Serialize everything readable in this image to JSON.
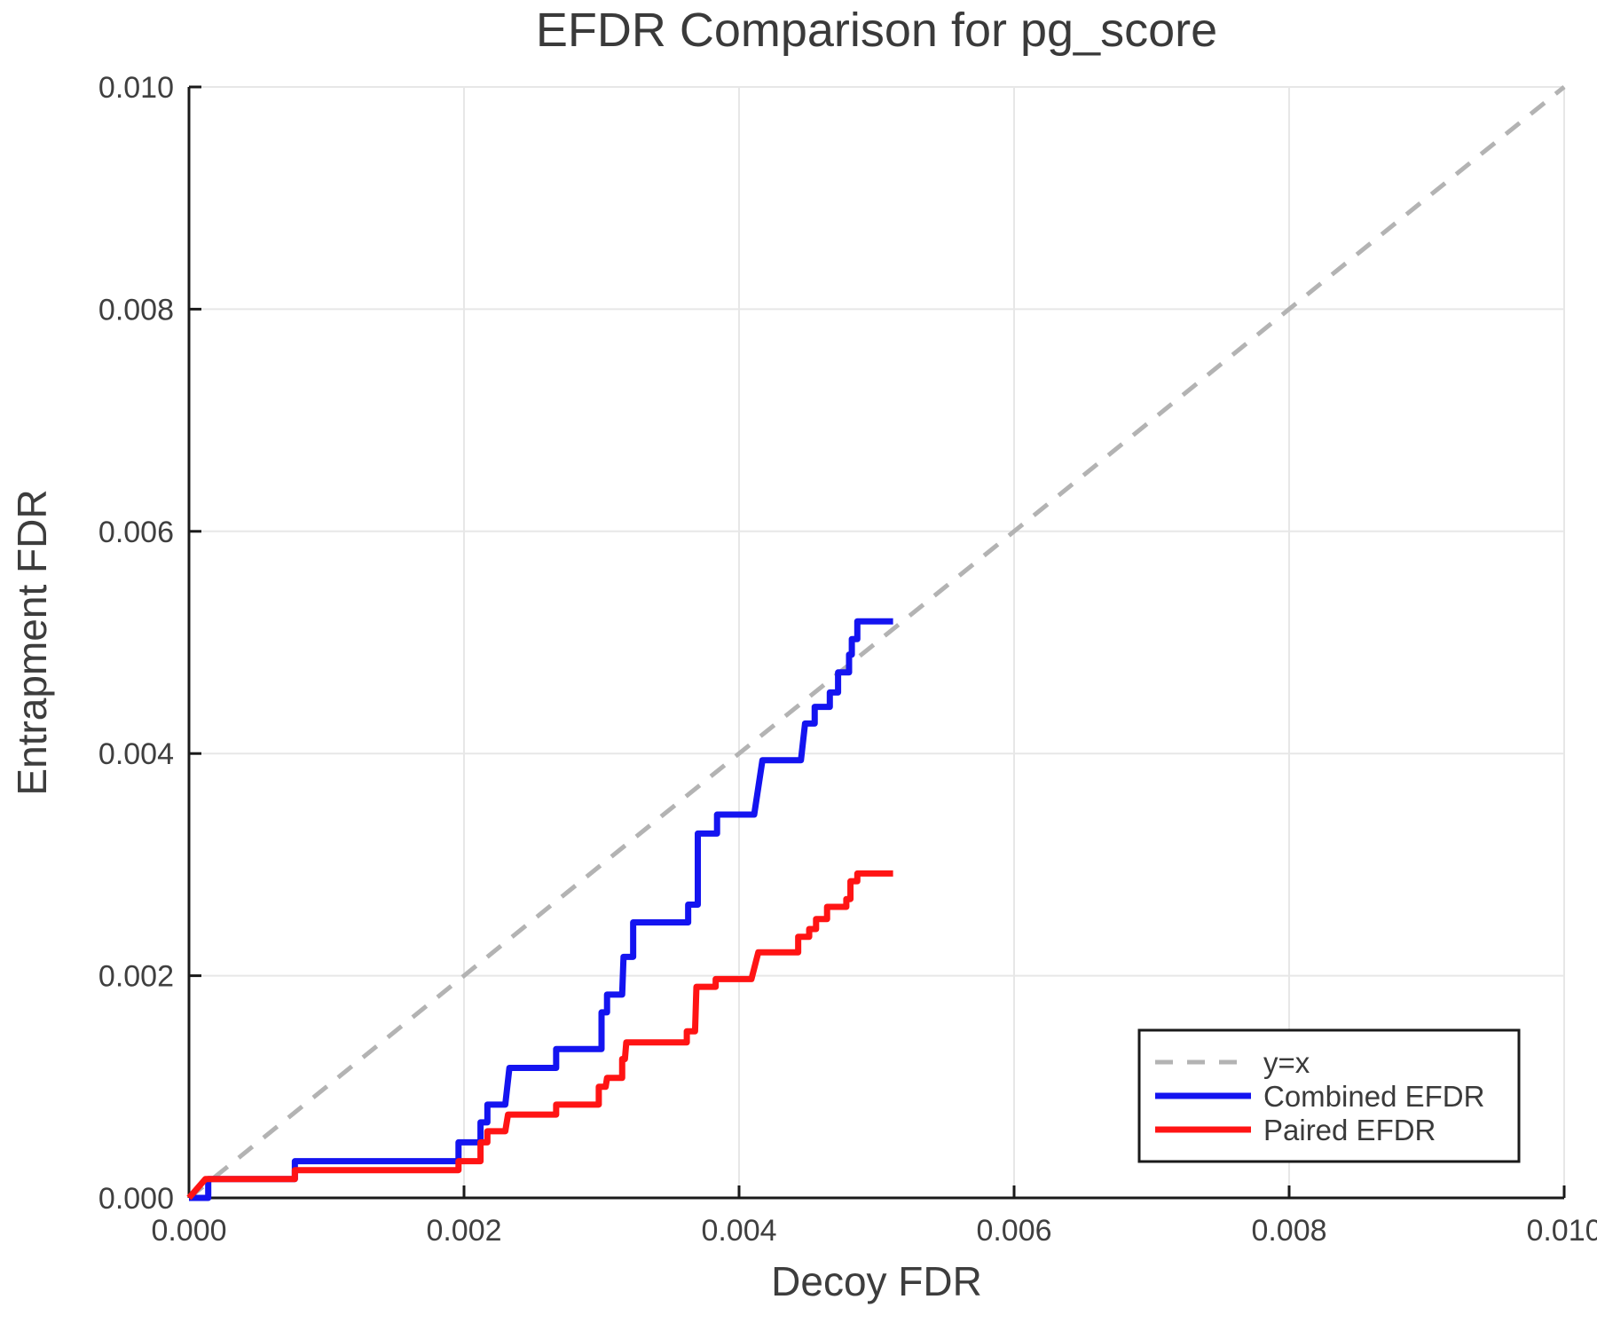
{
  "title": "EFDR Comparison for pg_score",
  "axes": {
    "xlabel": "Decoy FDR",
    "ylabel": "Entrapment FDR",
    "xtick_labels": [
      "0.000",
      "0.002",
      "0.004",
      "0.006",
      "0.008",
      "0.010"
    ],
    "ytick_labels": [
      "0.000",
      "0.002",
      "0.004",
      "0.006",
      "0.008",
      "0.010"
    ]
  },
  "legend": {
    "position": "lower right",
    "entries": [
      {
        "label": "y=x"
      },
      {
        "label": "Combined EFDR"
      },
      {
        "label": "Paired EFDR"
      }
    ]
  },
  "colors": {
    "background": "#ffffff",
    "grid": "#e7e7e7",
    "spine": "#1a1a1a",
    "text": "#3d3d3d",
    "identity_line": "#b3b3b3",
    "combined": "#1414f0",
    "paired": "#ff1414"
  },
  "chart_data": {
    "type": "line",
    "title": "EFDR Comparison for pg_score",
    "xlabel": "Decoy FDR",
    "ylabel": "Entrapment FDR",
    "xlim": [
      0.0,
      0.01
    ],
    "ylim": [
      0.0,
      0.01
    ],
    "grid": true,
    "legend_position": "lower right",
    "series": [
      {
        "name": "y=x",
        "style": "dashed",
        "color": "#b3b3b3",
        "points": [
          [
            0.0,
            0.0
          ],
          [
            0.01,
            0.01
          ]
        ]
      },
      {
        "name": "Combined EFDR",
        "style": "solid",
        "color": "#1414f0",
        "points": [
          [
            0.0,
            0.0
          ],
          [
            0.00014,
            0.0
          ],
          [
            0.00014,
            0.00017
          ],
          [
            0.00077,
            0.00017
          ],
          [
            0.00077,
            0.00033
          ],
          [
            0.00196,
            0.00033
          ],
          [
            0.00196,
            0.0005
          ],
          [
            0.00212,
            0.0005
          ],
          [
            0.00212,
            0.00068
          ],
          [
            0.00217,
            0.00068
          ],
          [
            0.00217,
            0.00084
          ],
          [
            0.0023,
            0.00084
          ],
          [
            0.00233,
            0.00117
          ],
          [
            0.00267,
            0.00117
          ],
          [
            0.00267,
            0.00134
          ],
          [
            0.003,
            0.00134
          ],
          [
            0.003,
            0.00167
          ],
          [
            0.00304,
            0.00167
          ],
          [
            0.00304,
            0.00183
          ],
          [
            0.00315,
            0.00183
          ],
          [
            0.00316,
            0.00217
          ],
          [
            0.00323,
            0.00217
          ],
          [
            0.00323,
            0.00248
          ],
          [
            0.00363,
            0.00248
          ],
          [
            0.00363,
            0.00264
          ],
          [
            0.0037,
            0.00264
          ],
          [
            0.0037,
            0.00328
          ],
          [
            0.00384,
            0.00328
          ],
          [
            0.00384,
            0.00345
          ],
          [
            0.00411,
            0.00345
          ],
          [
            0.00417,
            0.00394
          ],
          [
            0.00445,
            0.00394
          ],
          [
            0.00448,
            0.00427
          ],
          [
            0.00455,
            0.00427
          ],
          [
            0.00455,
            0.00442
          ],
          [
            0.00466,
            0.00442
          ],
          [
            0.00466,
            0.00455
          ],
          [
            0.00472,
            0.00455
          ],
          [
            0.00472,
            0.00473
          ],
          [
            0.0048,
            0.00473
          ],
          [
            0.0048,
            0.00489
          ],
          [
            0.00482,
            0.00489
          ],
          [
            0.00482,
            0.00503
          ],
          [
            0.00486,
            0.00503
          ],
          [
            0.00486,
            0.00519
          ],
          [
            0.00512,
            0.00519
          ]
        ]
      },
      {
        "name": "Paired EFDR",
        "style": "solid",
        "color": "#ff1414",
        "points": [
          [
            0.0,
            0.0
          ],
          [
            0.00012,
            0.00017
          ],
          [
            0.00077,
            0.00017
          ],
          [
            0.00077,
            0.00025
          ],
          [
            0.00196,
            0.00025
          ],
          [
            0.00196,
            0.00033
          ],
          [
            0.00212,
            0.00033
          ],
          [
            0.00212,
            0.0005
          ],
          [
            0.00217,
            0.0005
          ],
          [
            0.00217,
            0.0006
          ],
          [
            0.0023,
            0.0006
          ],
          [
            0.00232,
            0.00075
          ],
          [
            0.00267,
            0.00075
          ],
          [
            0.00267,
            0.00084
          ],
          [
            0.00298,
            0.00084
          ],
          [
            0.00298,
            0.001
          ],
          [
            0.00303,
            0.001
          ],
          [
            0.00304,
            0.00108
          ],
          [
            0.00315,
            0.00108
          ],
          [
            0.00315,
            0.00125
          ],
          [
            0.00317,
            0.00125
          ],
          [
            0.00318,
            0.0014
          ],
          [
            0.00362,
            0.0014
          ],
          [
            0.00362,
            0.0015
          ],
          [
            0.00368,
            0.0015
          ],
          [
            0.00369,
            0.0019
          ],
          [
            0.00383,
            0.0019
          ],
          [
            0.00383,
            0.00197
          ],
          [
            0.00409,
            0.00197
          ],
          [
            0.00414,
            0.00221
          ],
          [
            0.00443,
            0.00221
          ],
          [
            0.00443,
            0.00235
          ],
          [
            0.00451,
            0.00235
          ],
          [
            0.00451,
            0.00242
          ],
          [
            0.00456,
            0.00242
          ],
          [
            0.00456,
            0.00251
          ],
          [
            0.00464,
            0.00251
          ],
          [
            0.00464,
            0.00262
          ],
          [
            0.00478,
            0.00262
          ],
          [
            0.00478,
            0.00269
          ],
          [
            0.00481,
            0.00269
          ],
          [
            0.00481,
            0.00285
          ],
          [
            0.00486,
            0.00285
          ],
          [
            0.00486,
            0.00292
          ],
          [
            0.00512,
            0.00292
          ]
        ]
      }
    ]
  }
}
